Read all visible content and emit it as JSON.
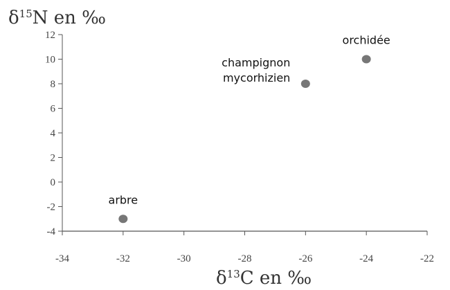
{
  "chart_data": {
    "type": "scatter",
    "ylabel": {
      "prefix": "δ",
      "sup": "15",
      "rest": "N en ‰"
    },
    "xlabel": {
      "prefix": "δ",
      "sup": "13",
      "rest": "C en ‰"
    },
    "xlim": [
      -34,
      -22
    ],
    "ylim": [
      -4,
      12
    ],
    "xticks": [
      -34,
      -32,
      -30,
      -28,
      -26,
      -24,
      -22
    ],
    "yticks": [
      -4,
      -2,
      0,
      2,
      4,
      6,
      8,
      10,
      12
    ],
    "grid": false,
    "points": [
      {
        "x": -32,
        "y": -3,
        "label": [
          "arbre"
        ]
      },
      {
        "x": -26,
        "y": 8,
        "label": [
          "champignon",
          "mycorhizien"
        ]
      },
      {
        "x": -24,
        "y": 10,
        "label": [
          "orchidée"
        ]
      }
    ],
    "colors": {
      "marker": "#777777",
      "axis": "#555555",
      "text": "#111111"
    }
  }
}
